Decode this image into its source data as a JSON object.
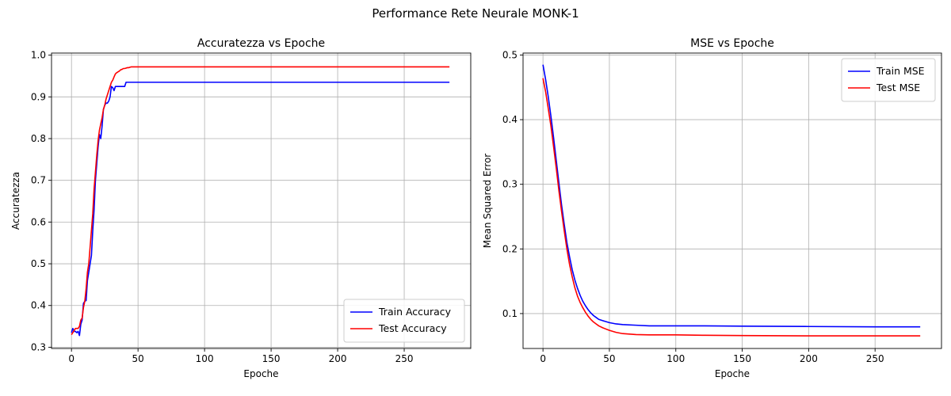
{
  "suptitle": "Performance Rete Neurale MONK-1",
  "chart_data": [
    {
      "type": "line",
      "title": "Accuratezza vs Epoche",
      "xlabel": "Epoche",
      "ylabel": "Accuratezza",
      "xlim": [
        -15,
        300
      ],
      "ylim": [
        0.297,
        1.005
      ],
      "xticks": [
        0,
        50,
        100,
        150,
        200,
        250
      ],
      "yticks": [
        0.3,
        0.4,
        0.5,
        0.6,
        0.7,
        0.8,
        0.9,
        1.0
      ],
      "ytick_labels": [
        "0.3",
        "0.4",
        "0.5",
        "0.6",
        "0.7",
        "0.8",
        "0.9",
        "1.0"
      ],
      "grid": true,
      "legend_position": "lower-right",
      "series": [
        {
          "name": "Train Accuracy",
          "color": "#0000ff",
          "x": [
            0,
            1,
            2,
            3,
            4,
            5,
            6,
            7,
            8,
            9,
            10,
            11,
            12,
            13,
            14,
            15,
            16,
            17,
            18,
            19,
            20,
            21,
            22,
            23,
            24,
            25,
            26,
            27,
            28,
            29,
            30,
            31,
            32,
            33,
            34,
            35,
            36,
            37,
            38,
            39,
            40,
            41,
            42,
            43,
            44,
            45,
            50,
            100,
            150,
            200,
            250,
            284
          ],
          "values": [
            0.335,
            0.345,
            0.338,
            0.338,
            0.335,
            0.338,
            0.328,
            0.355,
            0.365,
            0.405,
            0.41,
            0.412,
            0.46,
            0.48,
            0.5,
            0.52,
            0.58,
            0.63,
            0.7,
            0.74,
            0.78,
            0.81,
            0.8,
            0.83,
            0.87,
            0.88,
            0.885,
            0.885,
            0.89,
            0.9,
            0.925,
            0.922,
            0.915,
            0.925,
            0.925,
            0.925,
            0.925,
            0.925,
            0.925,
            0.925,
            0.925,
            0.935,
            0.935,
            0.935,
            0.935,
            0.935,
            0.935,
            0.935,
            0.935,
            0.935,
            0.935,
            0.935
          ]
        },
        {
          "name": "Test Accuracy",
          "color": "#ff0000",
          "x": [
            0,
            1,
            2,
            3,
            4,
            5,
            6,
            7,
            8,
            9,
            10,
            11,
            12,
            13,
            14,
            15,
            16,
            17,
            18,
            19,
            20,
            21,
            22,
            23,
            24,
            25,
            26,
            27,
            28,
            29,
            30,
            31,
            32,
            33,
            34,
            35,
            36,
            37,
            38,
            39,
            40,
            41,
            42,
            43,
            44,
            45,
            46,
            47,
            48,
            50,
            100,
            150,
            200,
            250,
            284
          ],
          "values": [
            0.33,
            0.335,
            0.34,
            0.345,
            0.345,
            0.345,
            0.35,
            0.365,
            0.37,
            0.395,
            0.41,
            0.44,
            0.48,
            0.5,
            0.54,
            0.58,
            0.62,
            0.68,
            0.72,
            0.76,
            0.795,
            0.82,
            0.835,
            0.85,
            0.87,
            0.88,
            0.895,
            0.905,
            0.915,
            0.925,
            0.935,
            0.94,
            0.948,
            0.955,
            0.958,
            0.96,
            0.962,
            0.965,
            0.966,
            0.968,
            0.968,
            0.969,
            0.97,
            0.97,
            0.971,
            0.972,
            0.972,
            0.972,
            0.972,
            0.972,
            0.972,
            0.972,
            0.972,
            0.972,
            0.972
          ]
        }
      ]
    },
    {
      "type": "line",
      "title": "MSE vs Epoche",
      "xlabel": "Epoche",
      "ylabel": "Mean Squared Error",
      "xlim": [
        -15,
        300
      ],
      "ylim": [
        0.046,
        0.503
      ],
      "xticks": [
        0,
        50,
        100,
        150,
        200,
        250
      ],
      "yticks": [
        0.1,
        0.2,
        0.3,
        0.4,
        0.5
      ],
      "ytick_labels": [
        "0.1",
        "0.2",
        "0.3",
        "0.4",
        "0.5"
      ],
      "grid": true,
      "legend_position": "top-right",
      "series": [
        {
          "name": "Train MSE",
          "color": "#0000ff",
          "x": [
            0,
            2,
            4,
            6,
            8,
            10,
            12,
            14,
            16,
            18,
            20,
            22,
            24,
            26,
            28,
            30,
            32,
            34,
            36,
            38,
            40,
            42,
            45,
            50,
            55,
            60,
            70,
            80,
            90,
            100,
            120,
            150,
            200,
            250,
            284
          ],
          "values": [
            0.485,
            0.462,
            0.435,
            0.405,
            0.372,
            0.337,
            0.302,
            0.268,
            0.238,
            0.21,
            0.188,
            0.168,
            0.152,
            0.139,
            0.128,
            0.119,
            0.112,
            0.106,
            0.101,
            0.097,
            0.094,
            0.091,
            0.089,
            0.086,
            0.084,
            0.083,
            0.082,
            0.081,
            0.081,
            0.081,
            0.081,
            0.0805,
            0.08,
            0.0795,
            0.0795
          ]
        },
        {
          "name": "Test MSE",
          "color": "#ff0000",
          "x": [
            0,
            2,
            4,
            6,
            8,
            10,
            12,
            14,
            16,
            18,
            20,
            22,
            24,
            26,
            28,
            30,
            32,
            34,
            36,
            38,
            40,
            42,
            45,
            50,
            55,
            60,
            70,
            80,
            90,
            100,
            120,
            150,
            200,
            250,
            284
          ],
          "values": [
            0.464,
            0.443,
            0.417,
            0.39,
            0.358,
            0.325,
            0.29,
            0.258,
            0.228,
            0.2,
            0.176,
            0.157,
            0.14,
            0.127,
            0.117,
            0.109,
            0.102,
            0.096,
            0.091,
            0.087,
            0.084,
            0.081,
            0.078,
            0.074,
            0.071,
            0.069,
            0.0675,
            0.067,
            0.067,
            0.067,
            0.0665,
            0.066,
            0.0655,
            0.0655,
            0.0655
          ]
        }
      ]
    }
  ]
}
